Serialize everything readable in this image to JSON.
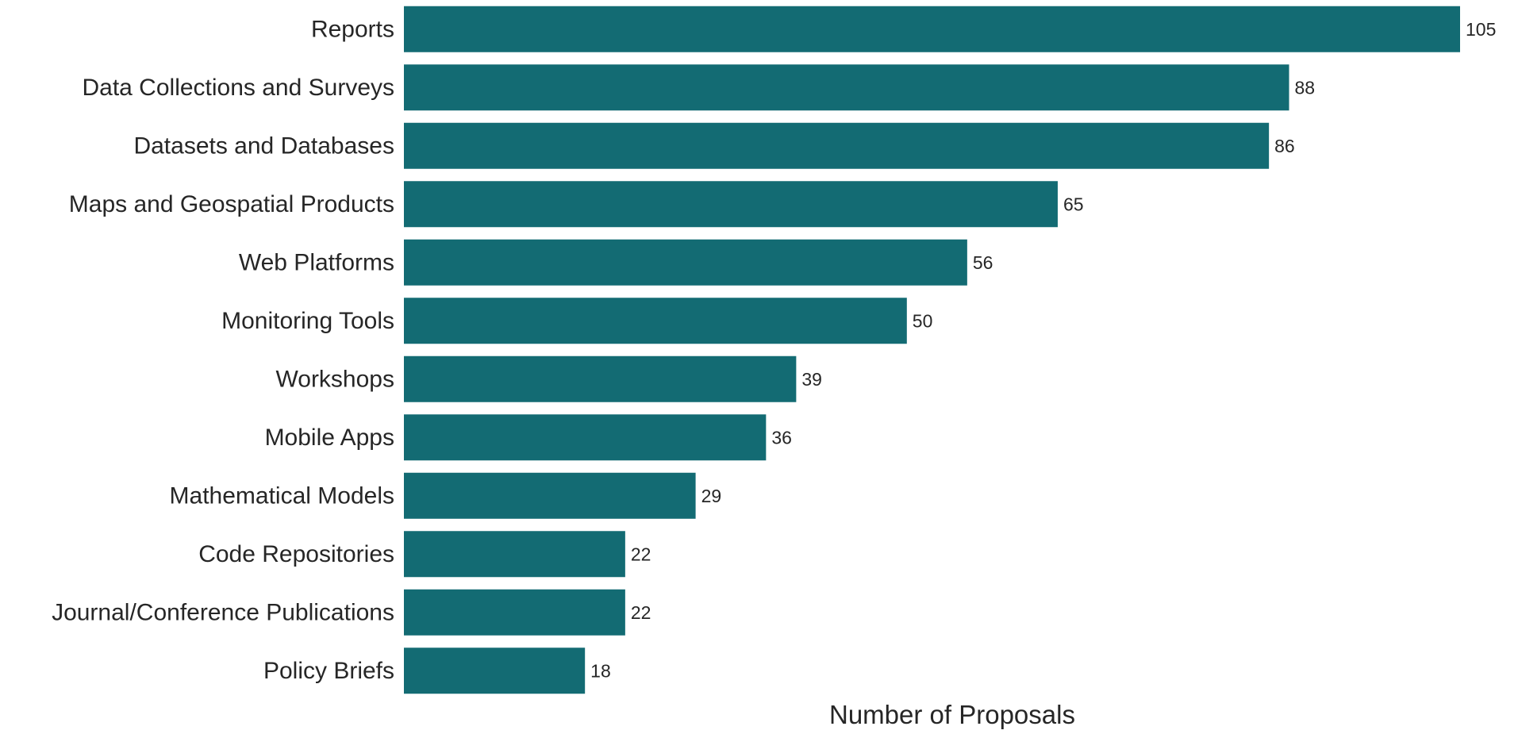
{
  "chart_data": {
    "type": "bar",
    "orientation": "horizontal",
    "title": "",
    "xlabel": "Number of Proposals",
    "ylabel": "",
    "categories": [
      "Reports",
      "Data Collections and Surveys",
      "Datasets and Databases",
      "Maps and Geospatial Products",
      "Web Platforms",
      "Monitoring Tools",
      "Workshops",
      "Mobile Apps",
      "Mathematical Models",
      "Code Repositories",
      "Journal/Conference Publications",
      "Policy Briefs"
    ],
    "values": [
      105,
      88,
      86,
      65,
      56,
      50,
      39,
      36,
      29,
      22,
      22,
      18
    ],
    "xlim": [
      0,
      105
    ],
    "grid": false,
    "legend": "none",
    "bar_color": "#136b73",
    "data_labels": true
  }
}
